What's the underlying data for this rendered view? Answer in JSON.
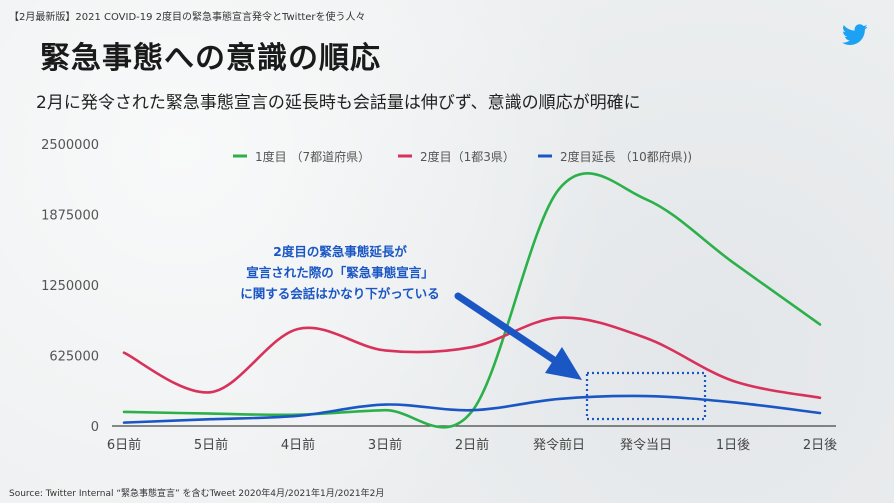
{
  "header": {
    "report_tag": "【2月最新版】2021 COVID-19 2度目の緊急事態宣言発令とTwitterを使う人々",
    "title": "緊急事態への意識の順応",
    "subtitle": "2月に発令された緊急事態宣言の延長時も会話量は伸びず、意識の順応が明確に"
  },
  "footer": {
    "source": "Source: Twitter Internal “緊急事態宣言” を含むTweet 2020年4月/2021年1月/2021年2月"
  },
  "colors": {
    "brand": "#1DA1F2",
    "annotation": "#1a56c4"
  },
  "chart_data": {
    "type": "line",
    "categories": [
      "6日前",
      "5日前",
      "4日前",
      "3日前",
      "2日前",
      "発令前日",
      "発令当日",
      "1日後",
      "2日後"
    ],
    "ylim": [
      0,
      2500000
    ],
    "yticks": [
      0,
      625000,
      1250000,
      1875000,
      2500000
    ],
    "ytick_labels": [
      "0",
      "625000",
      "1250000",
      "1875000",
      "2500000"
    ],
    "grid": false,
    "legend_position": "top",
    "series": [
      {
        "name": "1度目 （7都道府県）",
        "color": "#2bb04a",
        "values": [
          125000,
          110000,
          100000,
          140000,
          130000,
          2100000,
          2010000,
          1450000,
          900000
        ]
      },
      {
        "name": "2度目（1都3県）",
        "color": "#d8315b",
        "values": [
          650000,
          300000,
          860000,
          670000,
          700000,
          960000,
          780000,
          400000,
          250000
        ]
      },
      {
        "name": "2度目延長 （10都府県))",
        "color": "#1a56c4",
        "values": [
          30000,
          60000,
          90000,
          190000,
          140000,
          240000,
          265000,
          210000,
          115000
        ]
      }
    ],
    "annotation": {
      "lines": [
        "2度目の緊急事態延長が",
        "宣言された際の「緊急事態宣言」",
        "に関する会話はかなり下がっている"
      ],
      "highlight_from_category": "発令前日",
      "highlight_to_category": "1日後"
    }
  }
}
